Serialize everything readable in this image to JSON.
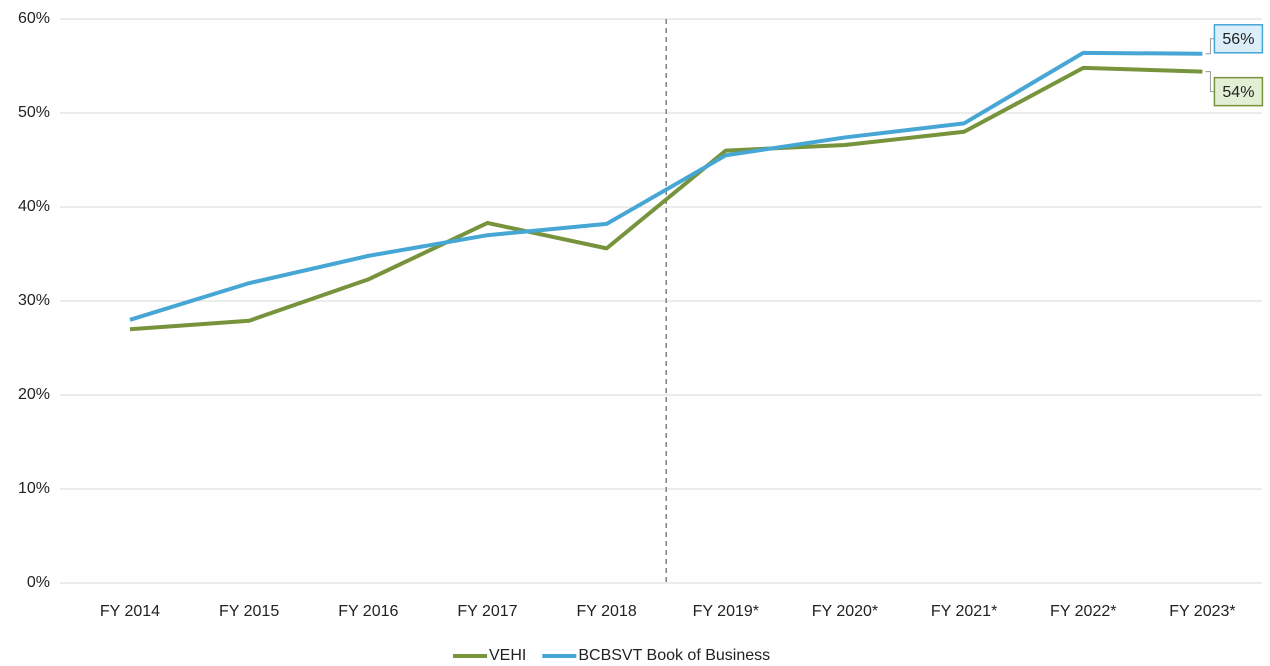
{
  "chart_data": {
    "type": "line",
    "categories": [
      "FY 2014",
      "FY 2015",
      "FY 2016",
      "FY 2017",
      "FY 2018",
      "FY 2019*",
      "FY 2020*",
      "FY 2021*",
      "FY 2022*",
      "FY 2023*"
    ],
    "series": [
      {
        "name": "VEHI",
        "color": "#77933c",
        "values": [
          27.0,
          27.9,
          32.3,
          38.3,
          35.6,
          46.0,
          46.6,
          48.0,
          54.8,
          54.4
        ],
        "value_labels": [
          null,
          null,
          null,
          null,
          null,
          null,
          null,
          null,
          null,
          "54%"
        ],
        "label_fill": "#e2efd4"
      },
      {
        "name": "BCBSVT Book of Business",
        "color": "#46a6d4",
        "values": [
          28.0,
          31.9,
          34.8,
          37.0,
          38.2,
          45.5,
          47.4,
          48.9,
          56.4,
          56.3
        ],
        "value_labels": [
          null,
          null,
          null,
          null,
          null,
          null,
          null,
          null,
          null,
          "56%"
        ],
        "label_fill": "#dbeefa"
      }
    ],
    "ylim": [
      0,
      60
    ],
    "yticks": [
      {
        "value": 0,
        "label": "0%"
      },
      {
        "value": 10,
        "label": "10%"
      },
      {
        "value": 20,
        "label": "20%"
      },
      {
        "value": 30,
        "label": "30%"
      },
      {
        "value": 40,
        "label": "40%"
      },
      {
        "value": 50,
        "label": "50%"
      },
      {
        "value": 60,
        "label": "60%"
      }
    ],
    "grid": true,
    "legend": "bottom"
  }
}
